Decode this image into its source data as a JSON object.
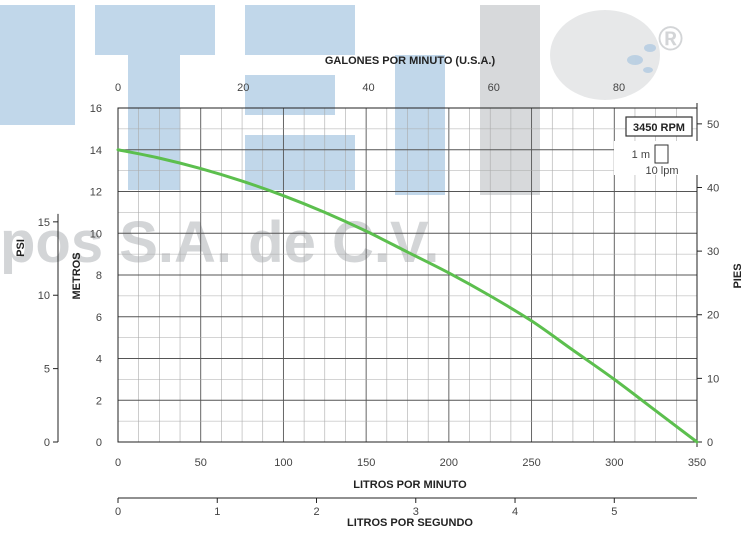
{
  "watermark": {
    "brand_text": "RTELI",
    "company_text": "pos S.A. de C.V.",
    "registered_mark": "®",
    "colors": {
      "blue": "#1f6fb2",
      "gray": "#7c8087"
    }
  },
  "chart_data": {
    "type": "line",
    "title": "",
    "xlabel": "LITROS POR MINUTO",
    "ylabel": "METROS",
    "xlim": [
      0,
      350
    ],
    "ylim": [
      0,
      16
    ],
    "grid": true,
    "x_ticks": [
      0,
      50,
      100,
      150,
      200,
      250,
      300,
      350
    ],
    "y_ticks": [
      0,
      2,
      4,
      6,
      8,
      10,
      12,
      14,
      16
    ],
    "series": [
      {
        "color": "#5cbf4e",
        "x": [
          0,
          25,
          50,
          75,
          100,
          125,
          150,
          175,
          200,
          225,
          250,
          275,
          300,
          325,
          350
        ],
        "y": [
          14.0,
          13.6,
          13.1,
          12.5,
          11.8,
          11.0,
          10.1,
          9.1,
          8.1,
          7.0,
          5.8,
          4.4,
          3.0,
          1.5,
          0.0
        ]
      }
    ],
    "secondary_axes": {
      "top": {
        "label": "GALONES POR MINUTO (U.S.A.)",
        "ticks": [
          0,
          20,
          40,
          60,
          80
        ],
        "units_per_primary": 0.264172
      },
      "right": {
        "label": "PIES",
        "ticks": [
          0,
          10,
          20,
          30,
          40,
          50
        ],
        "units_per_primary": 3.28084
      },
      "left_outer": {
        "label": "PSI",
        "ticks": [
          0,
          5,
          10,
          15
        ],
        "units_per_primary": 1.42233
      },
      "bottom_outer": {
        "label": "LITROS POR SEGUNDO",
        "ticks": [
          0,
          1,
          2,
          3,
          4,
          5
        ],
        "units_per_primary": 0.0166667
      }
    },
    "annotations": {
      "rpm": "3450 RPM",
      "scale_m": "1 m",
      "scale_lpm": "10 lpm"
    }
  }
}
